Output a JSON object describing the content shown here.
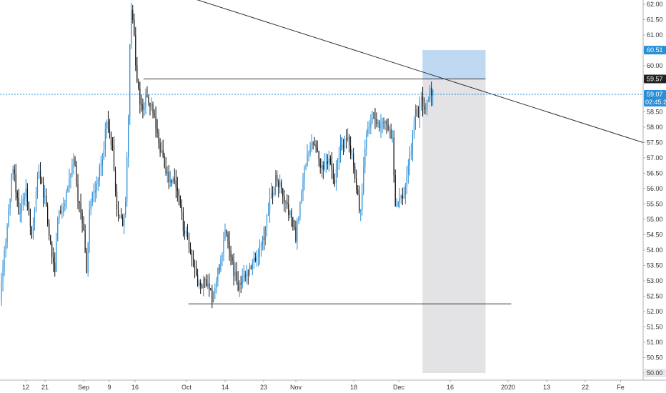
{
  "colors": {
    "up": "#2a8fd6",
    "down": "#111111",
    "trendline": "#333333",
    "price_line": "#2a8fd6",
    "target_zone": "#bfd9f2",
    "stop_zone": "#e3e3e5",
    "axis_text": "#333333",
    "badge_blue": "#2a8fd6",
    "badge_dark": "#222222",
    "badge_gray": "#e9e9ec"
  },
  "price_labels": {
    "target": "60.51",
    "entry": "59.57",
    "current": "59.07",
    "countdown": "02:45:25"
  },
  "chart_data": {
    "type": "candlestick",
    "y_axis": {
      "min": 50.0,
      "max": 62.0,
      "ticks": [
        "50.00",
        "50.50",
        "51.00",
        "51.50",
        "52.00",
        "52.50",
        "53.00",
        "53.50",
        "54.00",
        "54.50",
        "55.00",
        "55.50",
        "56.00",
        "56.50",
        "57.00",
        "57.50",
        "58.00",
        "58.50",
        "59.00",
        "59.50",
        "60.00",
        "60.50",
        "61.00",
        "61.50",
        "62.00"
      ]
    },
    "x_axis": {
      "labels": [
        "12",
        "21",
        "Sep",
        "9",
        "16",
        "Oct",
        "14",
        "23",
        "Nov",
        "18",
        "Dec",
        "16",
        "2020",
        "13",
        "22",
        "Fe"
      ],
      "label_positions": [
        0.04,
        0.07,
        0.13,
        0.17,
        0.21,
        0.29,
        0.35,
        0.41,
        0.46,
        0.55,
        0.62,
        0.7,
        0.79,
        0.85,
        0.91,
        0.965
      ]
    },
    "price_path": [
      [
        0.0,
        52.4
      ],
      [
        0.01,
        54.6
      ],
      [
        0.02,
        56.8
      ],
      [
        0.03,
        55.2
      ],
      [
        0.04,
        56.0
      ],
      [
        0.05,
        54.4
      ],
      [
        0.06,
        56.6
      ],
      [
        0.07,
        55.6
      ],
      [
        0.08,
        54.0
      ],
      [
        0.085,
        53.3
      ],
      [
        0.09,
        55.0
      ],
      [
        0.1,
        55.6
      ],
      [
        0.11,
        56.6
      ],
      [
        0.115,
        57.0
      ],
      [
        0.12,
        55.8
      ],
      [
        0.13,
        54.8
      ],
      [
        0.135,
        53.2
      ],
      [
        0.14,
        55.6
      ],
      [
        0.15,
        56.2
      ],
      [
        0.16,
        57.0
      ],
      [
        0.165,
        58.2
      ],
      [
        0.175,
        57.4
      ],
      [
        0.18,
        55.6
      ],
      [
        0.19,
        54.8
      ],
      [
        0.195,
        55.4
      ],
      [
        0.2,
        58.6
      ],
      [
        0.203,
        62.0
      ],
      [
        0.207,
        61.6
      ],
      [
        0.212,
        59.6
      ],
      [
        0.22,
        58.6
      ],
      [
        0.23,
        59.0
      ],
      [
        0.24,
        58.4
      ],
      [
        0.25,
        57.2
      ],
      [
        0.26,
        56.4
      ],
      [
        0.27,
        56.2
      ],
      [
        0.28,
        55.6
      ],
      [
        0.285,
        54.6
      ],
      [
        0.29,
        54.6
      ],
      [
        0.3,
        53.6
      ],
      [
        0.31,
        52.8
      ],
      [
        0.32,
        53.0
      ],
      [
        0.33,
        52.4
      ],
      [
        0.34,
        53.4
      ],
      [
        0.35,
        54.6
      ],
      [
        0.36,
        53.6
      ],
      [
        0.37,
        52.8
      ],
      [
        0.38,
        53.2
      ],
      [
        0.39,
        53.4
      ],
      [
        0.4,
        53.8
      ],
      [
        0.41,
        54.4
      ],
      [
        0.42,
        55.6
      ],
      [
        0.43,
        56.4
      ],
      [
        0.44,
        55.8
      ],
      [
        0.45,
        55.2
      ],
      [
        0.46,
        54.4
      ],
      [
        0.47,
        56.2
      ],
      [
        0.48,
        57.2
      ],
      [
        0.49,
        57.6
      ],
      [
        0.5,
        56.6
      ],
      [
        0.51,
        57.0
      ],
      [
        0.52,
        56.2
      ],
      [
        0.53,
        57.4
      ],
      [
        0.54,
        57.6
      ],
      [
        0.55,
        56.8
      ],
      [
        0.56,
        55.0
      ],
      [
        0.565,
        56.6
      ],
      [
        0.57,
        57.8
      ],
      [
        0.58,
        58.4
      ],
      [
        0.59,
        58.0
      ],
      [
        0.6,
        58.2
      ],
      [
        0.61,
        57.6
      ],
      [
        0.615,
        55.3
      ],
      [
        0.62,
        55.6
      ],
      [
        0.63,
        56.0
      ],
      [
        0.64,
        57.4
      ],
      [
        0.645,
        58.6
      ],
      [
        0.65,
        58.4
      ],
      [
        0.655,
        58.9
      ],
      [
        0.66,
        58.4
      ],
      [
        0.665,
        59.0
      ],
      [
        0.67,
        59.2
      ],
      [
        0.673,
        59.07
      ]
    ],
    "annotations": {
      "trendline": {
        "start": [
          0.0,
          64.2
        ],
        "end": [
          1.0,
          57.5
        ]
      },
      "trendline_short": {
        "start": [
          0.0,
          62.6
        ],
        "end": [
          0.03,
          63.6
        ]
      },
      "resistance_line": {
        "start": [
          0.223,
          59.57
        ],
        "end": [
          0.735,
          59.57
        ]
      },
      "support_line": {
        "start": [
          0.293,
          52.25
        ],
        "end": [
          0.795,
          52.25
        ]
      },
      "current_price_line": 59.07,
      "position": {
        "x_start": 0.657,
        "x_end": 0.755,
        "target": 60.51,
        "entry": 59.57,
        "stop": 50.0
      }
    }
  }
}
